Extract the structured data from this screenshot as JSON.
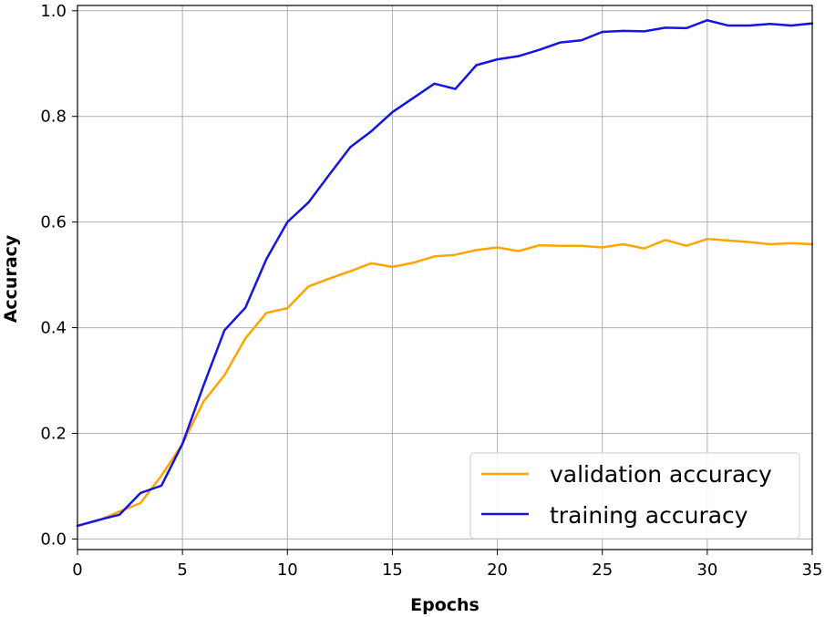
{
  "chart_data": {
    "type": "line",
    "xlabel": "Epochs",
    "ylabel": "Accuracy",
    "xlim": [
      0,
      35
    ],
    "ylim": [
      -0.02,
      1.01
    ],
    "xticks": [
      0,
      5,
      10,
      15,
      20,
      25,
      30,
      35
    ],
    "yticks": [
      0.0,
      0.2,
      0.4,
      0.6,
      0.8,
      1.0
    ],
    "xtick_labels": [
      "0",
      "5",
      "10",
      "15",
      "20",
      "25",
      "30",
      "35"
    ],
    "ytick_labels": [
      "0.0",
      "0.2",
      "0.4",
      "0.6",
      "0.8",
      "1.0"
    ],
    "grid": true,
    "legend_position": "bottom-right",
    "x": [
      0,
      1,
      2,
      3,
      4,
      5,
      6,
      7,
      8,
      9,
      10,
      11,
      12,
      13,
      14,
      15,
      16,
      17,
      18,
      19,
      20,
      21,
      22,
      23,
      24,
      25,
      26,
      27,
      28,
      29,
      30,
      31,
      32,
      33,
      34,
      35
    ],
    "series": [
      {
        "name": "validation accuracy",
        "color": "#FFA500",
        "values": [
          0.025,
          0.035,
          0.052,
          0.068,
          0.12,
          0.18,
          0.26,
          0.31,
          0.38,
          0.428,
          0.437,
          0.478,
          0.493,
          0.507,
          0.522,
          0.515,
          0.523,
          0.535,
          0.538,
          0.547,
          0.552,
          0.545,
          0.556,
          0.555,
          0.555,
          0.552,
          0.558,
          0.55,
          0.566,
          0.555,
          0.568,
          0.565,
          0.562,
          0.558,
          0.56,
          0.558
        ]
      },
      {
        "name": "training accuracy",
        "color": "#1414E6",
        "values": [
          0.025,
          0.036,
          0.046,
          0.087,
          0.101,
          0.18,
          0.29,
          0.395,
          0.438,
          0.53,
          0.6,
          0.637,
          0.69,
          0.742,
          0.772,
          0.808,
          0.835,
          0.862,
          0.852,
          0.897,
          0.908,
          0.914,
          0.926,
          0.94,
          0.944,
          0.96,
          0.962,
          0.961,
          0.968,
          0.967,
          0.982,
          0.972,
          0.972,
          0.975,
          0.972,
          0.976
        ]
      }
    ]
  }
}
